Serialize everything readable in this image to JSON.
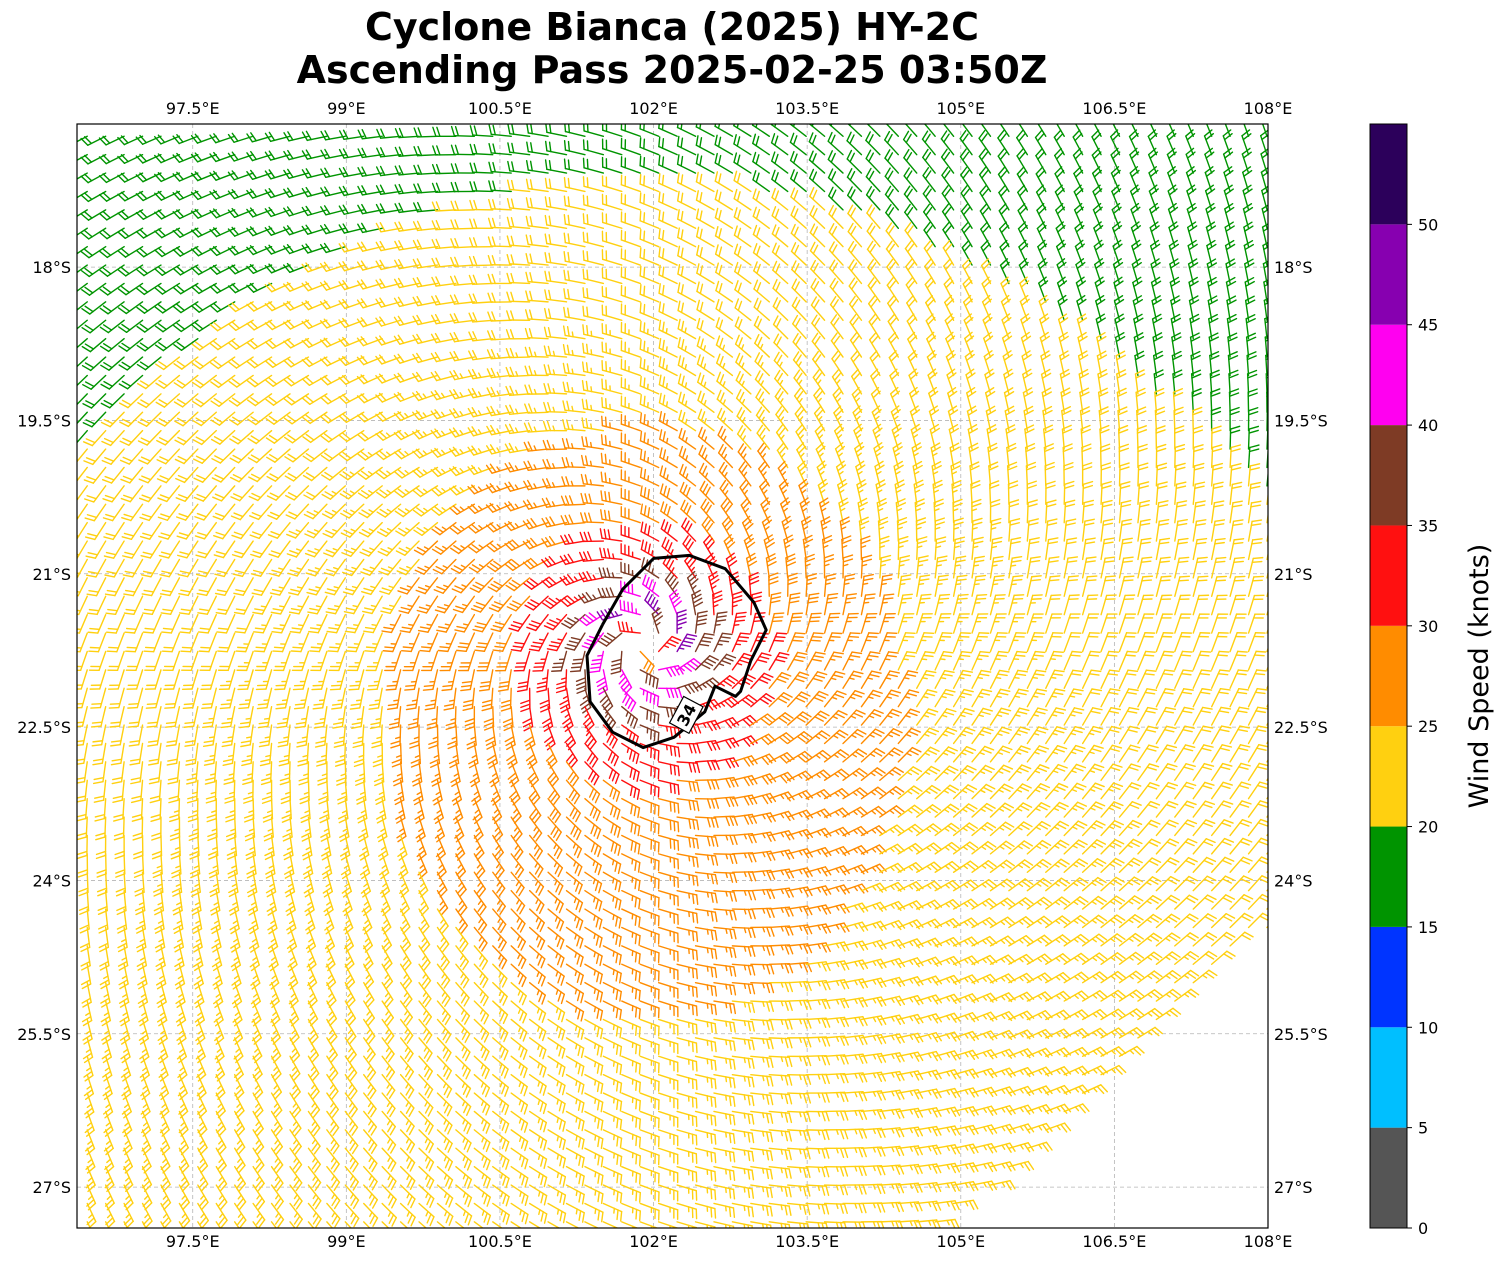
{
  "title": {
    "line1": "Cyclone Bianca (2025) HY-2C",
    "line2": "Ascending Pass 2025-02-25 03:50Z"
  },
  "chart_data": {
    "type": "wind-barb map",
    "lon_range": [
      96.37,
      108.0
    ],
    "lat_range": [
      -27.4,
      -16.6
    ],
    "lon_ticks": [
      "97.5°E",
      "99°E",
      "100.5°E",
      "102°E",
      "103.5°E",
      "105°E",
      "106.5°E",
      "108°E"
    ],
    "lon_tick_values": [
      97.5,
      99,
      100.5,
      102,
      103.5,
      105,
      106.5,
      108
    ],
    "lat_ticks": [
      "18°S",
      "19.5°S",
      "21°S",
      "22.5°S",
      "24°S",
      "25.5°S",
      "27°S"
    ],
    "lat_tick_values": [
      -18,
      -19.5,
      -21,
      -22.5,
      -24,
      -25.5,
      -27
    ],
    "grid": true,
    "cyclone_center": {
      "lon": 101.9,
      "lat": -21.7
    },
    "contour": {
      "label": "34",
      "value": 34,
      "color": "#000000",
      "points": [
        [
          101.5,
          -21.5
        ],
        [
          101.7,
          -21.15
        ],
        [
          102.0,
          -20.85
        ],
        [
          102.35,
          -20.82
        ],
        [
          102.7,
          -20.95
        ],
        [
          102.98,
          -21.28
        ],
        [
          103.1,
          -21.55
        ],
        [
          102.95,
          -21.85
        ],
        [
          102.85,
          -22.15
        ],
        [
          102.8,
          -22.2
        ],
        [
          102.6,
          -22.1
        ],
        [
          102.5,
          -22.35
        ],
        [
          102.2,
          -22.6
        ],
        [
          101.9,
          -22.7
        ],
        [
          101.6,
          -22.55
        ],
        [
          101.38,
          -22.25
        ],
        [
          101.35,
          -21.8
        ],
        [
          101.5,
          -21.5
        ]
      ]
    },
    "colorbar": {
      "label": "Wind Speed (knots)",
      "bounds": [
        0,
        5,
        10,
        15,
        20,
        25,
        30,
        35,
        40,
        45,
        50,
        55
      ],
      "tick_labels": [
        "0",
        "5",
        "10",
        "15",
        "20",
        "25",
        "30",
        "35",
        "40",
        "45",
        "50"
      ],
      "colors": [
        "#555555",
        "#00bfff",
        "#0034ff",
        "#009400",
        "#ffd010",
        "#ff8c00",
        "#ff1010",
        "#7e3b25",
        "#ff00f0",
        "#8700b0",
        "#2c005b"
      ]
    },
    "wind_field": {
      "model": "cyclonic vortex",
      "rmw_deg": 0.35,
      "vmax_kt": 46,
      "background_kt": 14,
      "inflow_deg": 20
    }
  }
}
